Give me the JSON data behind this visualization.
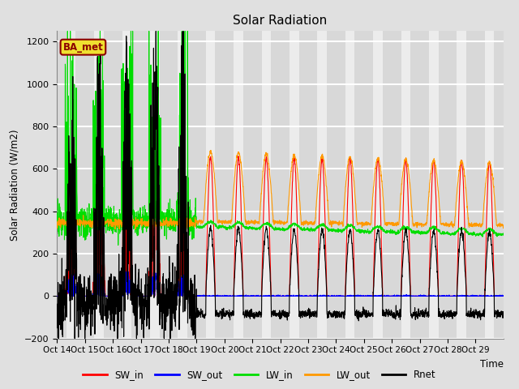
{
  "title": "Solar Radiation",
  "ylabel": "Solar Radiation (W/m2)",
  "xlabel": "Time",
  "ylim": [
    -200,
    1250
  ],
  "yticks": [
    -200,
    0,
    200,
    400,
    600,
    800,
    1000,
    1200
  ],
  "xtick_labels": [
    "Oct 14",
    "Oct 15",
    "Oct 16",
    "Oct 17",
    "Oct 18",
    "Oct 19",
    "Oct 20",
    "Oct 21",
    "Oct 22",
    "Oct 23",
    "Oct 24",
    "Oct 25",
    "Oct 26",
    "Oct 27",
    "Oct 28",
    "Oct 29"
  ],
  "colors": {
    "SW_in": "#ff0000",
    "SW_out": "#0000ff",
    "LW_in": "#00dd00",
    "LW_out": "#ff9900",
    "Rnet": "#000000"
  },
  "legend_label": "BA_met",
  "legend_label_color": "#8b0000",
  "legend_label_bg": "#f0e030",
  "background_color": "#e0e0e0",
  "plot_bg_light": "#dcdcdc",
  "plot_bg_dark": "#f0f0f0",
  "grid_color": "#ffffff",
  "linewidth": 0.8,
  "figsize": [
    6.4,
    4.8
  ],
  "dpi": 100
}
